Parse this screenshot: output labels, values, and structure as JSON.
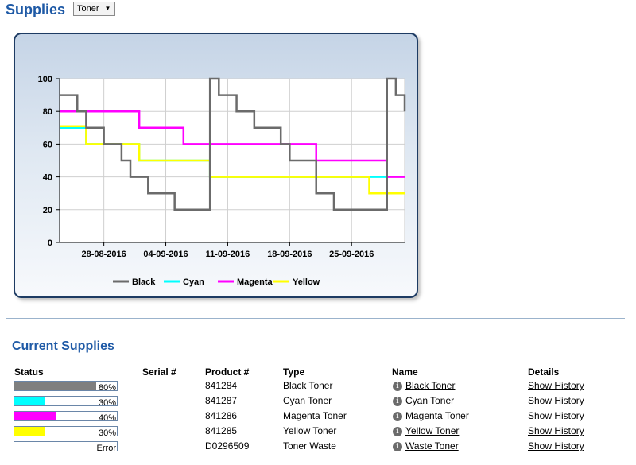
{
  "header": {
    "title": "Supplies",
    "selector_value": "Toner"
  },
  "section_title": "Current Supplies",
  "table": {
    "headers": {
      "status": "Status",
      "serial": "Serial #",
      "product": "Product #",
      "type": "Type",
      "name": "Name",
      "details": "Details"
    },
    "rows": [
      {
        "level": 0.8,
        "level_text": "80%",
        "color": "#7f7f7f",
        "serial": "",
        "product": "841284",
        "type": "Black Toner",
        "name": "Black Toner",
        "details": "Show History"
      },
      {
        "level": 0.3,
        "level_text": "30%",
        "color": "#00ffff",
        "serial": "",
        "product": "841287",
        "type": "Cyan Toner",
        "name": "Cyan Toner",
        "details": "Show History"
      },
      {
        "level": 0.4,
        "level_text": "40%",
        "color": "#ff00ff",
        "serial": "",
        "product": "841286",
        "type": "Magenta Toner",
        "name": "Magenta Toner",
        "details": "Show History"
      },
      {
        "level": 0.3,
        "level_text": "30%",
        "color": "#ffff00",
        "serial": "",
        "product": "841285",
        "type": "Yellow Toner",
        "name": "Yellow Toner",
        "details": "Show History"
      },
      {
        "level": 0,
        "level_text": "Error",
        "color": "#ffffff",
        "serial": "",
        "product": "D0296509",
        "type": "Toner Waste",
        "name": "Waste Toner",
        "details": "Show History"
      }
    ]
  },
  "chart_data": {
    "type": "line",
    "title": "",
    "xlabel": "",
    "ylabel": "",
    "ylim": [
      0,
      100
    ],
    "yticks": [
      0,
      20,
      40,
      60,
      80,
      100
    ],
    "xlim": [
      "2016-08-23",
      "2016-10-01"
    ],
    "xticks": [
      "28-08-2016",
      "04-09-2016",
      "11-09-2016",
      "18-09-2016",
      "25-09-2016"
    ],
    "grid": true,
    "legend": "bottom",
    "step": true,
    "series": [
      {
        "name": "Black",
        "color": "#6b6b6b",
        "points": [
          [
            "2016-08-23",
            90
          ],
          [
            "2016-08-25",
            80
          ],
          [
            "2016-08-26",
            70
          ],
          [
            "2016-08-28",
            60
          ],
          [
            "2016-08-30",
            50
          ],
          [
            "2016-08-31",
            40
          ],
          [
            "2016-09-02",
            30
          ],
          [
            "2016-09-05",
            20
          ],
          [
            "2016-09-09",
            100
          ],
          [
            "2016-09-10",
            90
          ],
          [
            "2016-09-12",
            80
          ],
          [
            "2016-09-14",
            70
          ],
          [
            "2016-09-17",
            60
          ],
          [
            "2016-09-18",
            50
          ],
          [
            "2016-09-21",
            30
          ],
          [
            "2016-09-23",
            20
          ],
          [
            "2016-09-29",
            100
          ],
          [
            "2016-09-30",
            90
          ],
          [
            "2016-10-01",
            80
          ]
        ]
      },
      {
        "name": "Cyan",
        "color": "#00ffff",
        "points": [
          [
            "2016-08-23",
            70
          ],
          [
            "2016-08-26",
            60
          ],
          [
            "2016-09-01",
            50
          ],
          [
            "2016-09-09",
            40
          ],
          [
            "2016-09-29",
            30
          ],
          [
            "2016-10-01",
            30
          ]
        ]
      },
      {
        "name": "Magenta",
        "color": "#ff00ff",
        "points": [
          [
            "2016-08-23",
            80
          ],
          [
            "2016-09-01",
            70
          ],
          [
            "2016-09-06",
            60
          ],
          [
            "2016-09-21",
            50
          ],
          [
            "2016-09-29",
            40
          ],
          [
            "2016-10-01",
            40
          ]
        ]
      },
      {
        "name": "Yellow",
        "color": "#ffff00",
        "points": [
          [
            "2016-08-23",
            71
          ],
          [
            "2016-08-26",
            60
          ],
          [
            "2016-09-01",
            50
          ],
          [
            "2016-09-09",
            40
          ],
          [
            "2016-09-27",
            30
          ],
          [
            "2016-10-01",
            30
          ]
        ]
      }
    ]
  }
}
